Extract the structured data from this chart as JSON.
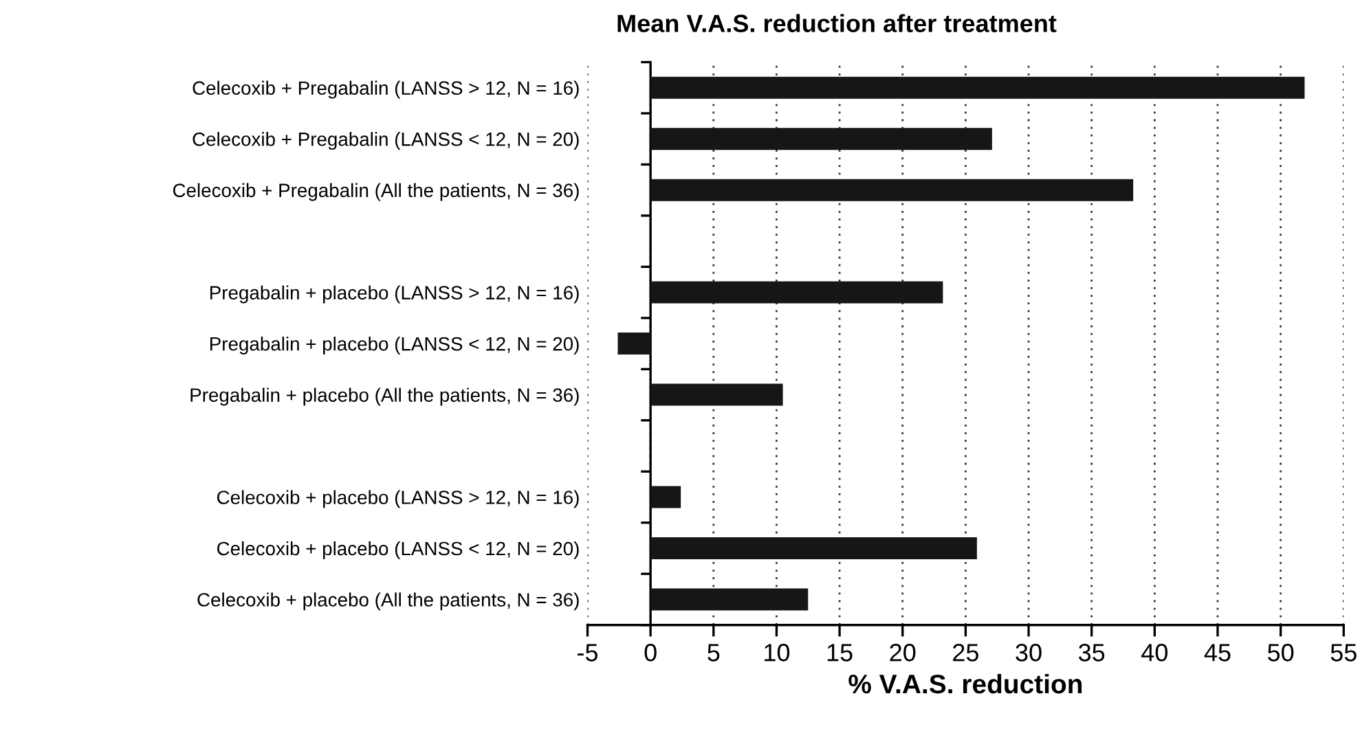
{
  "chart_data": {
    "type": "bar",
    "orientation": "horizontal",
    "title": "Mean V.A.S. reduction after treatment",
    "xlabel": "% V.A.S. reduction",
    "categories": [
      "Celecoxib + Pregabalin (LANSS > 12, N = 16)",
      "Celecoxib + Pregabalin (LANSS < 12, N = 20)",
      "Celecoxib + Pregabalin (All the patients, N = 36)",
      null,
      "Pregabalin + placebo (LANSS > 12, N = 16)",
      "Pregabalin + placebo (LANSS < 12, N = 20)",
      "Pregabalin + placebo (All the patients, N = 36)",
      null,
      "Celecoxib + placebo (LANSS > 12, N = 16)",
      "Celecoxib + placebo (LANSS < 12, N = 20)",
      "Celecoxib + placebo (All the patients, N = 36)"
    ],
    "values": [
      51.9,
      27.1,
      38.3,
      null,
      23.2,
      -2.6,
      10.5,
      null,
      2.4,
      25.9,
      12.5
    ],
    "color": "#161616",
    "xlim": [
      -5,
      55
    ],
    "xticks": [
      -5,
      0,
      5,
      10,
      15,
      20,
      25,
      30,
      35,
      40,
      45,
      50,
      55
    ],
    "grid": "x",
    "legend": false
  }
}
